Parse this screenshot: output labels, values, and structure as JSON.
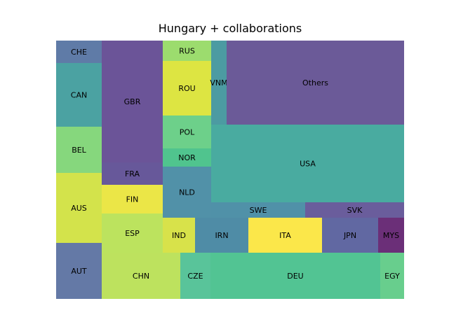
{
  "chart_data": {
    "type": "treemap",
    "title": "Hungary + collaborations",
    "items": [
      {
        "label": "CHE",
        "color": "#5f7ba7"
      },
      {
        "label": "CAN",
        "color": "#4ba2a2"
      },
      {
        "label": "BEL",
        "color": "#86d77d"
      },
      {
        "label": "AUS",
        "color": "#d3e34b"
      },
      {
        "label": "AUT",
        "color": "#6479a6"
      },
      {
        "label": "GBR",
        "color": "#6b5498"
      },
      {
        "label": "FRA",
        "color": "#67589a"
      },
      {
        "label": "FIN",
        "color": "#ebe647"
      },
      {
        "label": "ESP",
        "color": "#bce35e"
      },
      {
        "label": "CHN",
        "color": "#bde25e"
      },
      {
        "label": "RUS",
        "color": "#9cdc6e"
      },
      {
        "label": "ROU",
        "color": "#dde542"
      },
      {
        "label": "POL",
        "color": "#6dd08a"
      },
      {
        "label": "NOR",
        "color": "#50c48e"
      },
      {
        "label": "NLD",
        "color": "#5191a8"
      },
      {
        "label": "IND",
        "color": "#d8e24a"
      },
      {
        "label": "VNM",
        "color": "#4c9ba2"
      },
      {
        "label": "Others",
        "color": "#6b5a98"
      },
      {
        "label": "USA",
        "color": "#49aba0"
      },
      {
        "label": "SWE",
        "color": "#5091a8"
      },
      {
        "label": "SVK",
        "color": "#6a5d9c"
      },
      {
        "label": "IRN",
        "color": "#4f8ca6"
      },
      {
        "label": "ITA",
        "color": "#fbe74a"
      },
      {
        "label": "JPN",
        "color": "#6168a2"
      },
      {
        "label": "MYS",
        "color": "#6b2f78"
      },
      {
        "label": "CZE",
        "color": "#59c49a"
      },
      {
        "label": "DEU",
        "color": "#52c493"
      },
      {
        "label": "EGY",
        "color": "#68ce8d"
      }
    ]
  }
}
